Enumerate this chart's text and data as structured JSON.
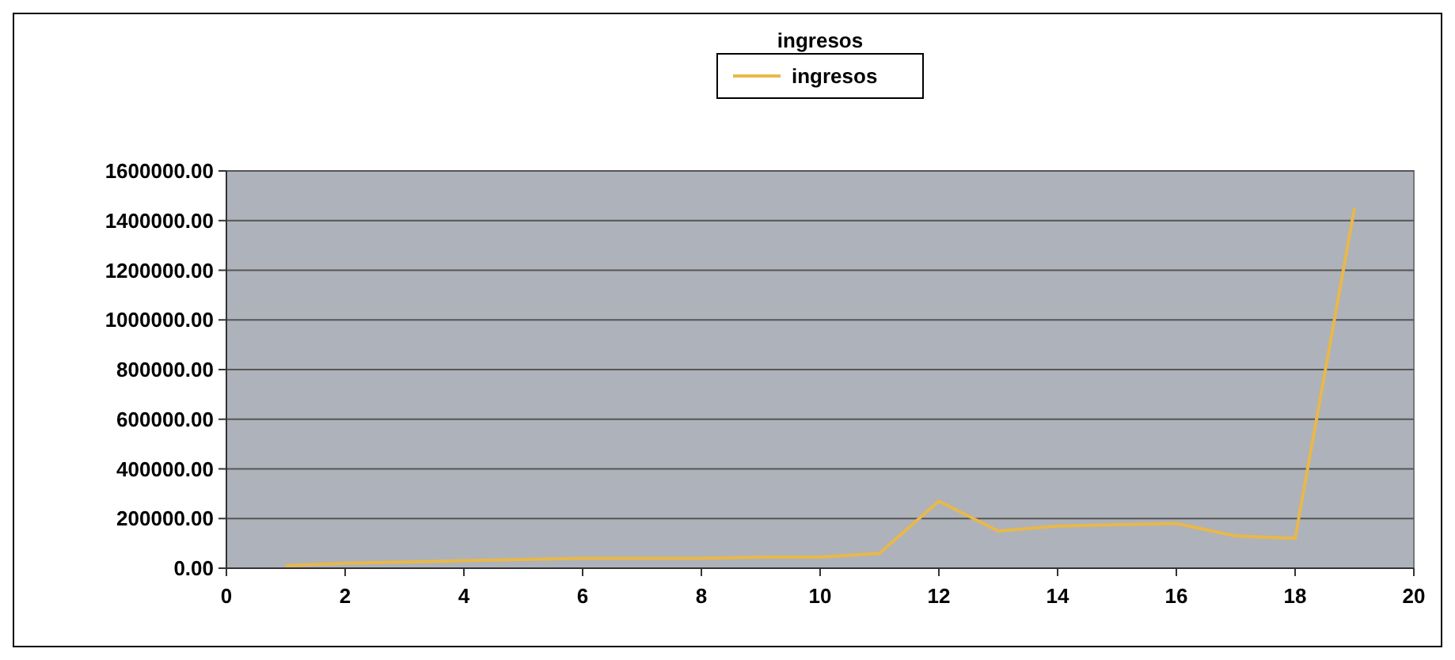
{
  "chart_data": {
    "type": "line",
    "title": "ingresos",
    "x": [
      1,
      2,
      3,
      4,
      5,
      6,
      7,
      8,
      9,
      10,
      11,
      12,
      13,
      14,
      15,
      16,
      17,
      18,
      19
    ],
    "series": [
      {
        "name": "ingresos",
        "color": "#e8b84a",
        "values": [
          10000,
          20000,
          25000,
          30000,
          35000,
          40000,
          40000,
          40000,
          45000,
          45000,
          60000,
          270000,
          150000,
          170000,
          175000,
          180000,
          130000,
          120000,
          1450000
        ]
      }
    ],
    "xlim": [
      0,
      20
    ],
    "xticks": [
      0,
      2,
      4,
      6,
      8,
      10,
      12,
      14,
      16,
      18,
      20
    ],
    "ylim": [
      0,
      1600000
    ],
    "yticks": [
      {
        "value": 0,
        "label": "0.00"
      },
      {
        "value": 200000,
        "label": "200000.00"
      },
      {
        "value": 400000,
        "label": "400000.00"
      },
      {
        "value": 600000,
        "label": "600000.00"
      },
      {
        "value": 800000,
        "label": "800000.00"
      },
      {
        "value": 1000000,
        "label": "1000000.00"
      },
      {
        "value": 1200000,
        "label": "1200000.00"
      },
      {
        "value": 1400000,
        "label": "1400000.00"
      },
      {
        "value": 1600000,
        "label": "1600000.00"
      }
    ],
    "grid": "y",
    "legend": "top",
    "marker": "none",
    "line_style": "solid"
  }
}
